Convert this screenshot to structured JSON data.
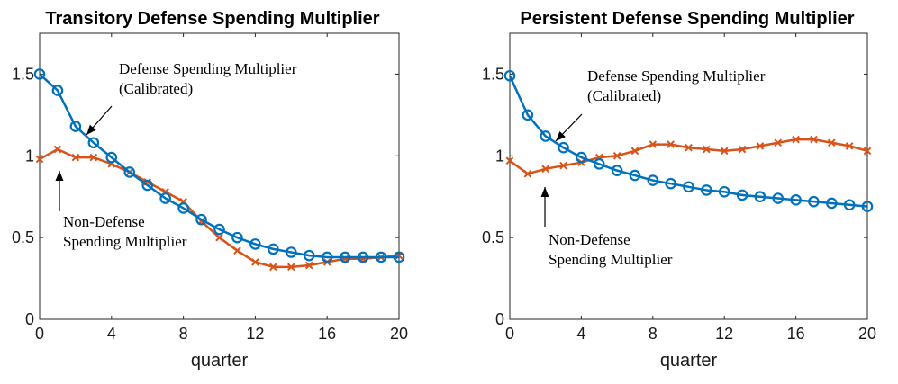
{
  "chart_data": [
    {
      "type": "line",
      "title": "Transitory Defense Spending Multiplier",
      "xlabel": "quarter",
      "ylabel": "",
      "xlim": [
        0,
        20
      ],
      "ylim": [
        0,
        1.75
      ],
      "xticks": [
        "0",
        "4",
        "8",
        "12",
        "16",
        "20"
      ],
      "yticks": [
        "0",
        "0.5",
        "1",
        "1.5"
      ],
      "x": [
        0,
        1,
        2,
        3,
        4,
        5,
        6,
        7,
        8,
        9,
        10,
        11,
        12,
        13,
        14,
        15,
        16,
        17,
        18,
        19,
        20
      ],
      "series": [
        {
          "name": "Defense Spending Multiplier (Calibrated)",
          "color": "#0072BD",
          "marker": "circle",
          "values": [
            1.5,
            1.4,
            1.18,
            1.08,
            0.99,
            0.9,
            0.82,
            0.74,
            0.68,
            0.61,
            0.55,
            0.5,
            0.46,
            0.43,
            0.41,
            0.39,
            0.38,
            0.38,
            0.38,
            0.38,
            0.38
          ]
        },
        {
          "name": "Non-Defense Spending Multiplier",
          "color": "#D95319",
          "marker": "x",
          "values": [
            0.98,
            1.04,
            0.99,
            0.99,
            0.95,
            0.9,
            0.84,
            0.78,
            0.72,
            0.6,
            0.5,
            0.42,
            0.35,
            0.32,
            0.32,
            0.33,
            0.35,
            0.37,
            0.37,
            0.38,
            0.39
          ]
        }
      ],
      "annotations": [
        {
          "lines": [
            "Defense Spending Multiplier",
            "(Calibrated)"
          ],
          "points_to": {
            "x": 2,
            "y": 1.18
          }
        },
        {
          "lines": [
            "Non-Defense",
            "Spending Multiplier"
          ],
          "points_to": {
            "x": 1,
            "y": 0.95
          }
        }
      ]
    },
    {
      "type": "line",
      "title": "Persistent Defense Spending Multiplier",
      "xlabel": "quarter",
      "ylabel": "",
      "xlim": [
        0,
        20
      ],
      "ylim": [
        0,
        1.75
      ],
      "xticks": [
        "0",
        "4",
        "8",
        "12",
        "16",
        "20"
      ],
      "yticks": [
        "0",
        "0.5",
        "1",
        "1.5"
      ],
      "x": [
        0,
        1,
        2,
        3,
        4,
        5,
        6,
        7,
        8,
        9,
        10,
        11,
        12,
        13,
        14,
        15,
        16,
        17,
        18,
        19,
        20
      ],
      "series": [
        {
          "name": "Defense Spending Multiplier (Calibrated)",
          "color": "#0072BD",
          "marker": "circle",
          "values": [
            1.49,
            1.25,
            1.12,
            1.05,
            0.99,
            0.95,
            0.91,
            0.88,
            0.85,
            0.83,
            0.81,
            0.79,
            0.78,
            0.76,
            0.75,
            0.74,
            0.73,
            0.72,
            0.71,
            0.7,
            0.69
          ]
        },
        {
          "name": "Non-Defense Spending Multiplier",
          "color": "#D95319",
          "marker": "x",
          "values": [
            0.97,
            0.89,
            0.92,
            0.94,
            0.96,
            0.99,
            1.0,
            1.03,
            1.07,
            1.07,
            1.05,
            1.04,
            1.03,
            1.04,
            1.06,
            1.08,
            1.1,
            1.1,
            1.08,
            1.06,
            1.03
          ]
        }
      ],
      "annotations": [
        {
          "lines": [
            "Defense Spending Multiplier",
            "(Calibrated)"
          ],
          "points_to": {
            "x": 2.6,
            "y": 1.12
          }
        },
        {
          "lines": [
            "Non-Defense",
            "Spending Multiplier"
          ],
          "points_to": {
            "x": 2,
            "y": 0.92
          }
        }
      ]
    }
  ]
}
